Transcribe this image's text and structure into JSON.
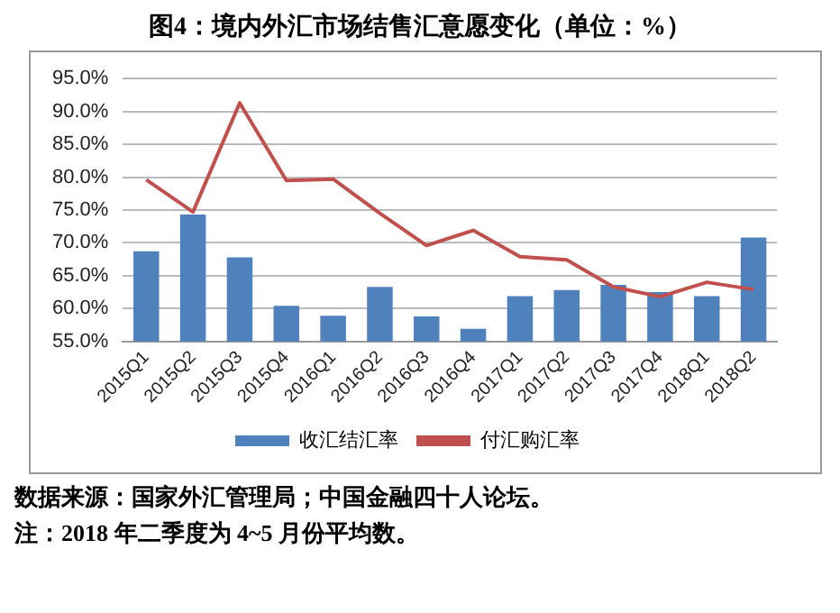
{
  "chart_data": {
    "type": "bar",
    "title": "图4：境内外汇市场结售汇意愿变化（单位：%）",
    "categories": [
      "2015Q1",
      "2015Q2",
      "2015Q3",
      "2015Q4",
      "2016Q1",
      "2016Q2",
      "2016Q3",
      "2016Q4",
      "2017Q1",
      "2017Q2",
      "2017Q3",
      "2017Q4",
      "2018Q1",
      "2018Q2"
    ],
    "series": [
      {
        "name": "收汇结汇率",
        "color": "#4f81bd",
        "values": [
          68.7,
          74.3,
          67.8,
          60.4,
          58.9,
          63.3,
          58.8,
          56.9,
          61.9,
          62.8,
          63.6,
          62.5,
          61.9,
          70.8
        ]
      },
      {
        "name": "付汇购汇率",
        "type": "line",
        "color": "#c0504d",
        "values": [
          79.6,
          74.7,
          91.3,
          79.5,
          79.7,
          74.5,
          69.6,
          71.9,
          67.9,
          67.4,
          63.3,
          61.8,
          64.0,
          62.9
        ]
      }
    ],
    "ylim": [
      55,
      95
    ],
    "yticks": [
      {
        "value": 55,
        "label": "55.0%"
      },
      {
        "value": 60,
        "label": "60.0%"
      },
      {
        "value": 65,
        "label": "65.0%"
      },
      {
        "value": 70,
        "label": "70.0%"
      },
      {
        "value": 75,
        "label": "75.0%"
      },
      {
        "value": 80,
        "label": "80.0%"
      },
      {
        "value": 85,
        "label": "85.0%"
      },
      {
        "value": 90,
        "label": "90.0%"
      },
      {
        "value": 95,
        "label": "95.0%"
      }
    ],
    "grid": "y",
    "legend": "bottom",
    "marker": "none",
    "annotations": [
      "数据来源：国家外汇管理局；中国金融四十人论坛。",
      "注：2018 年二季度为 4~5 月份平均数。"
    ]
  }
}
